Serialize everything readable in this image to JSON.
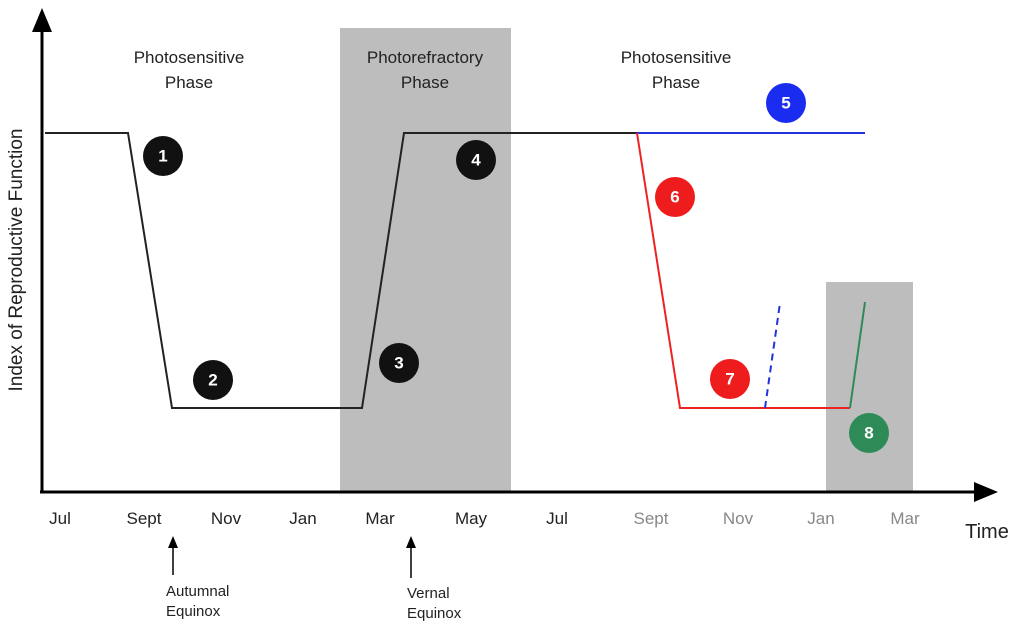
{
  "axes": {
    "y_label": "Index of Reproductive Function",
    "x_label": "Time"
  },
  "months": [
    "Jul",
    "Sept",
    "Nov",
    "Jan",
    "Mar",
    "May",
    "Jul",
    "Sept",
    "Nov",
    "Jan",
    "Mar"
  ],
  "phases": [
    [
      "Photosensitive",
      "Phase"
    ],
    [
      "Photorefractory",
      "Phase"
    ],
    [
      "Photosensitive",
      "Phase"
    ]
  ],
  "annotations": [
    [
      "Autumnal",
      "Equinox"
    ],
    [
      "Vernal",
      "Equinox"
    ]
  ],
  "markers": [
    "1",
    "2",
    "3",
    "4",
    "5",
    "6",
    "7",
    "8"
  ]
}
